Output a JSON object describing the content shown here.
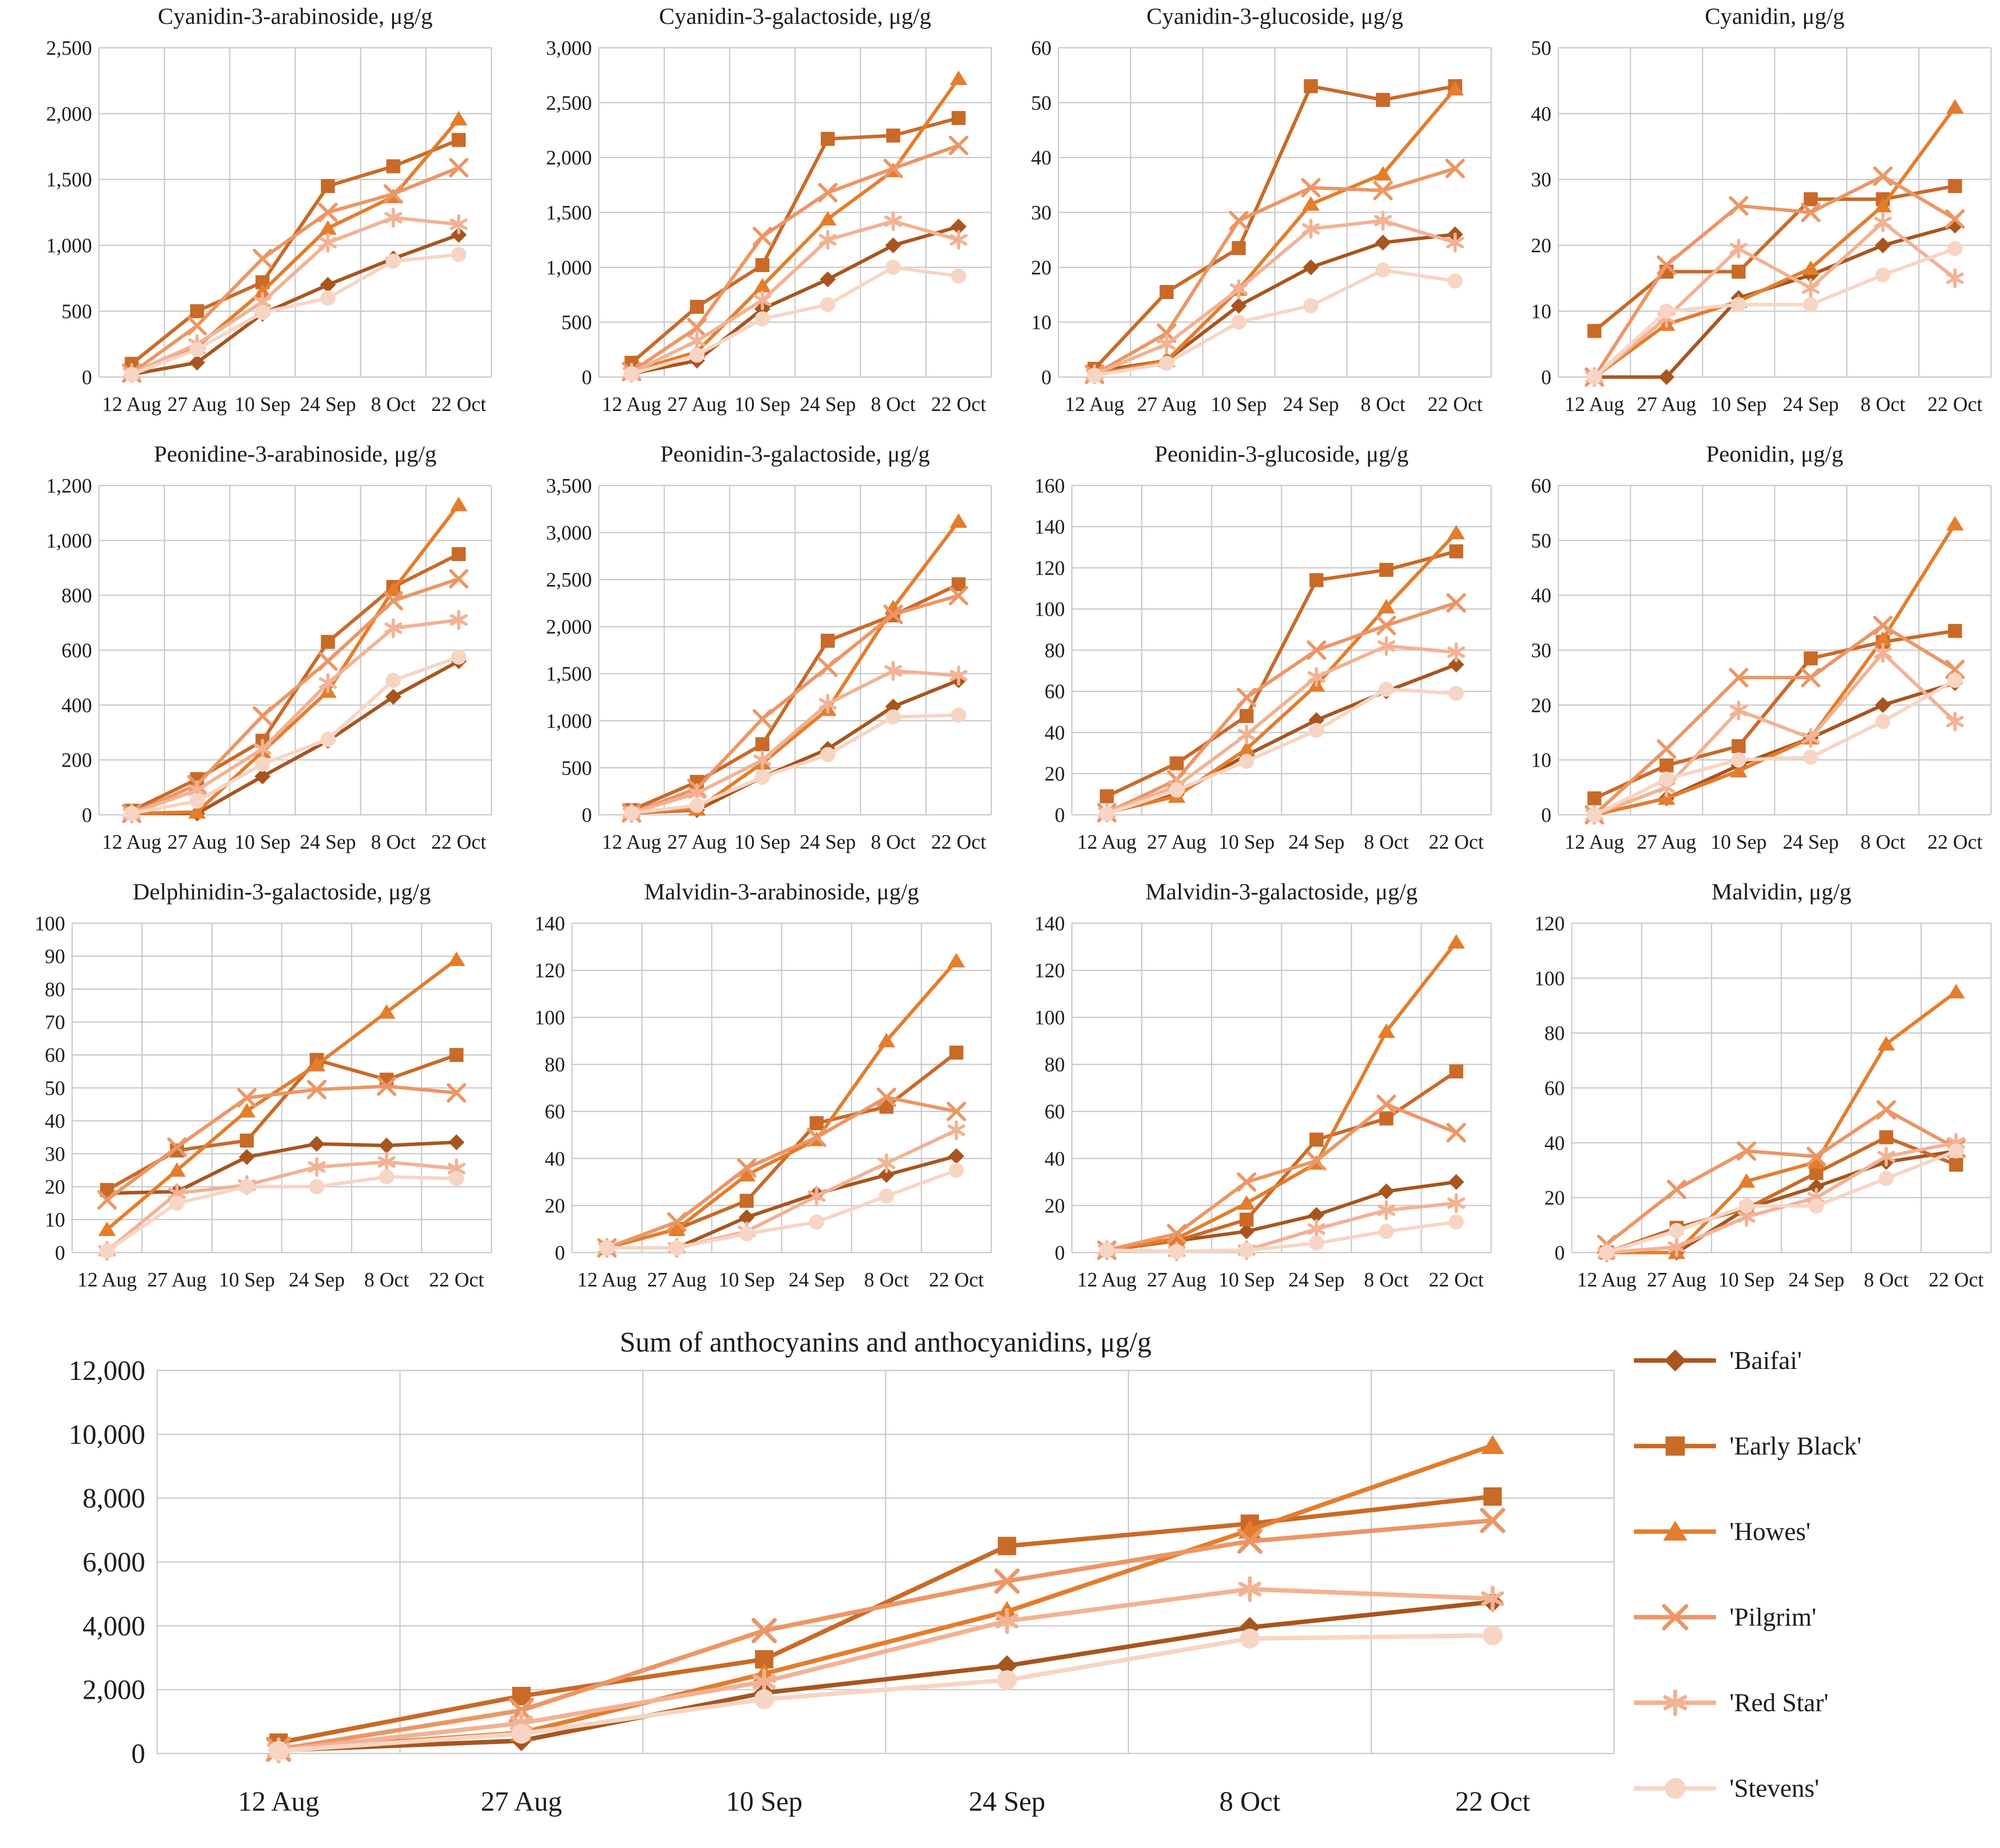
{
  "figure_background": "#ffffff",
  "grid_color": "#c9c9c9",
  "x_categories": [
    "12 Aug",
    "27 Aug",
    "10 Sep",
    "24 Sep",
    "8 Oct",
    "22 Oct"
  ],
  "cultivars": [
    {
      "label": "'Baifai'",
      "marker": "diamond",
      "color": "#A8551E"
    },
    {
      "label": "'Early Black'",
      "marker": "square",
      "color": "#C96A28"
    },
    {
      "label": "'Howes'",
      "marker": "triangle",
      "color": "#E47D2C"
    },
    {
      "label": "'Pilgrim'",
      "marker": "x",
      "color": "#EC9665"
    },
    {
      "label": "'Red Star'",
      "marker": "asterisk",
      "color": "#F2B294"
    },
    {
      "label": "'Stevens'",
      "marker": "circle",
      "color": "#F7D5C4"
    }
  ],
  "chart_data": [
    {
      "type": "line",
      "title": "Cyanidin-3-arabinoside, μg/g",
      "ylim": [
        0,
        2500
      ],
      "ystep": 500,
      "grid": true,
      "categories": [
        "12 Aug",
        "27 Aug",
        "10 Sep",
        "24 Sep",
        "8 Oct",
        "22 Oct"
      ],
      "series": [
        {
          "name": "'Baifai'",
          "values": [
            20,
            110,
            480,
            700,
            900,
            1080
          ]
        },
        {
          "name": "'Early Black'",
          "values": [
            100,
            500,
            720,
            1450,
            1600,
            1800
          ]
        },
        {
          "name": "'Howes'",
          "values": [
            30,
            230,
            650,
            1130,
            1370,
            1960
          ]
        },
        {
          "name": "'Pilgrim'",
          "values": [
            30,
            390,
            900,
            1250,
            1390,
            1590
          ]
        },
        {
          "name": "'Red Star'",
          "values": [
            30,
            250,
            570,
            1020,
            1210,
            1160
          ]
        },
        {
          "name": "'Stevens'",
          "values": [
            20,
            210,
            490,
            600,
            880,
            930
          ]
        }
      ]
    },
    {
      "type": "line",
      "title": "Cyanidin-3-galactoside, μg/g",
      "ylim": [
        0,
        3000
      ],
      "ystep": 500,
      "grid": true,
      "categories": [
        "12 Aug",
        "27 Aug",
        "10 Sep",
        "24 Sep",
        "8 Oct",
        "22 Oct"
      ],
      "series": [
        {
          "name": "'Baifai'",
          "values": [
            30,
            150,
            620,
            890,
            1200,
            1370
          ]
        },
        {
          "name": "'Early Black'",
          "values": [
            130,
            640,
            1020,
            2170,
            2200,
            2360
          ]
        },
        {
          "name": "'Howes'",
          "values": [
            50,
            230,
            830,
            1440,
            1880,
            2720
          ]
        },
        {
          "name": "'Pilgrim'",
          "values": [
            50,
            450,
            1280,
            1680,
            1900,
            2110
          ]
        },
        {
          "name": "'Red Star'",
          "values": [
            40,
            330,
            700,
            1250,
            1420,
            1250
          ]
        },
        {
          "name": "'Stevens'",
          "values": [
            30,
            200,
            530,
            660,
            1000,
            920
          ]
        }
      ]
    },
    {
      "type": "line",
      "title": "Cyanidin-3-glucoside, μg/g",
      "ylim": [
        0,
        60
      ],
      "ystep": 10,
      "grid": true,
      "categories": [
        "12 Aug",
        "27 Aug",
        "10 Sep",
        "24 Sep",
        "8 Oct",
        "22 Oct"
      ],
      "series": [
        {
          "name": "'Baifai'",
          "values": [
            1,
            3,
            13,
            20,
            24.5,
            26
          ]
        },
        {
          "name": "'Early Black'",
          "values": [
            1.5,
            15.5,
            23.5,
            53,
            50.5,
            53
          ]
        },
        {
          "name": "'Howes'",
          "values": [
            0.5,
            3,
            16,
            31.5,
            37,
            52.5
          ]
        },
        {
          "name": "'Pilgrim'",
          "values": [
            0.5,
            8,
            28.5,
            34.5,
            34,
            38
          ]
        },
        {
          "name": "'Red Star'",
          "values": [
            0.5,
            6,
            16,
            27,
            28.5,
            24.5
          ]
        },
        {
          "name": "'Stevens'",
          "values": [
            0.3,
            2.5,
            10,
            13,
            19.5,
            17.5
          ]
        }
      ]
    },
    {
      "type": "line",
      "title": "Cyanidin, μg/g",
      "ylim": [
        0,
        50
      ],
      "ystep": 10,
      "grid": true,
      "categories": [
        "12 Aug",
        "27 Aug",
        "10 Sep",
        "24 Sep",
        "8 Oct",
        "22 Oct"
      ],
      "series": [
        {
          "name": "'Baifai'",
          "values": [
            0,
            0,
            12,
            15.5,
            20,
            23
          ]
        },
        {
          "name": "'Early Black'",
          "values": [
            7,
            16,
            16,
            27,
            27,
            29
          ]
        },
        {
          "name": "'Howes'",
          "values": [
            0,
            8,
            11.5,
            16.5,
            26,
            41
          ]
        },
        {
          "name": "'Pilgrim'",
          "values": [
            0,
            17,
            26,
            25,
            30.5,
            24
          ]
        },
        {
          "name": "'Red Star'",
          "values": [
            0,
            9,
            19.5,
            13.5,
            23.5,
            15
          ]
        },
        {
          "name": "'Stevens'",
          "values": [
            0,
            10,
            11,
            11,
            15.5,
            19.5
          ]
        }
      ]
    },
    {
      "type": "line",
      "title": "Peonidine-3-arabinoside, μg/g",
      "ylim": [
        0,
        1200
      ],
      "ystep": 200,
      "grid": true,
      "categories": [
        "12 Aug",
        "27 Aug",
        "10 Sep",
        "24 Sep",
        "8 Oct",
        "22 Oct"
      ],
      "series": [
        {
          "name": "'Baifai'",
          "values": [
            5,
            5,
            140,
            270,
            430,
            560
          ]
        },
        {
          "name": "'Early Black'",
          "values": [
            15,
            130,
            270,
            630,
            830,
            950
          ]
        },
        {
          "name": "'Howes'",
          "values": [
            5,
            10,
            230,
            450,
            820,
            1130
          ]
        },
        {
          "name": "'Pilgrim'",
          "values": [
            5,
            110,
            360,
            560,
            780,
            860
          ]
        },
        {
          "name": "'Red Star'",
          "values": [
            5,
            90,
            240,
            480,
            680,
            710
          ]
        },
        {
          "name": "'Stevens'",
          "values": [
            5,
            50,
            185,
            275,
            490,
            575
          ]
        }
      ]
    },
    {
      "type": "line",
      "title": "Peonidin-3-galactoside, μg/g",
      "ylim": [
        0,
        3500
      ],
      "ystep": 500,
      "grid": true,
      "categories": [
        "12 Aug",
        "27 Aug",
        "10 Sep",
        "24 Sep",
        "8 Oct",
        "22 Oct"
      ],
      "series": [
        {
          "name": "'Baifai'",
          "values": [
            20,
            50,
            400,
            700,
            1150,
            1430
          ]
        },
        {
          "name": "'Early Black'",
          "values": [
            50,
            350,
            750,
            1850,
            2120,
            2450
          ]
        },
        {
          "name": "'Howes'",
          "values": [
            20,
            60,
            550,
            1120,
            2200,
            3120
          ]
        },
        {
          "name": "'Pilgrim'",
          "values": [
            20,
            280,
            1020,
            1570,
            2130,
            2330
          ]
        },
        {
          "name": "'Red Star'",
          "values": [
            20,
            230,
            580,
            1180,
            1530,
            1480
          ]
        },
        {
          "name": "'Stevens'",
          "values": [
            20,
            100,
            400,
            640,
            1040,
            1060
          ]
        }
      ]
    },
    {
      "type": "line",
      "title": "Peonidin-3-glucoside, μg/g",
      "ylim": [
        0,
        160
      ],
      "ystep": 20,
      "grid": true,
      "categories": [
        "12 Aug",
        "27 Aug",
        "10 Sep",
        "24 Sep",
        "8 Oct",
        "22 Oct"
      ],
      "series": [
        {
          "name": "'Baifai'",
          "values": [
            1,
            10,
            29,
            46,
            60,
            73
          ]
        },
        {
          "name": "'Early Black'",
          "values": [
            9,
            25,
            48,
            114,
            119,
            128
          ]
        },
        {
          "name": "'Howes'",
          "values": [
            1,
            9,
            32,
            63,
            101,
            137
          ]
        },
        {
          "name": "'Pilgrim'",
          "values": [
            1,
            17,
            57,
            80,
            92,
            103
          ]
        },
        {
          "name": "'Red Star'",
          "values": [
            1,
            14,
            39,
            67,
            82,
            79
          ]
        },
        {
          "name": "'Stevens'",
          "values": [
            0.5,
            12,
            26,
            41,
            61,
            59
          ]
        }
      ]
    },
    {
      "type": "line",
      "title": "Peonidin, μg/g",
      "ylim": [
        0,
        60
      ],
      "ystep": 10,
      "grid": true,
      "categories": [
        "12 Aug",
        "27 Aug",
        "10 Sep",
        "24 Sep",
        "8 Oct",
        "22 Oct"
      ],
      "series": [
        {
          "name": "'Baifai'",
          "values": [
            0,
            3,
            9,
            14,
            20,
            24
          ]
        },
        {
          "name": "'Early Black'",
          "values": [
            3,
            9,
            12.5,
            28.5,
            31.5,
            33.5
          ]
        },
        {
          "name": "'Howes'",
          "values": [
            0,
            3,
            8,
            14,
            32,
            53
          ]
        },
        {
          "name": "'Pilgrim'",
          "values": [
            0,
            12,
            25,
            25,
            34.5,
            26.5
          ]
        },
        {
          "name": "'Red Star'",
          "values": [
            0,
            5,
            19,
            14,
            29.5,
            17
          ]
        },
        {
          "name": "'Stevens'",
          "values": [
            0,
            6.5,
            10,
            10.5,
            17,
            24.5
          ]
        }
      ]
    },
    {
      "type": "line",
      "title": "Delphinidin-3-galactoside, μg/g",
      "ylim": [
        0,
        100
      ],
      "ystep": 10,
      "grid": true,
      "categories": [
        "12 Aug",
        "27 Aug",
        "10 Sep",
        "24 Sep",
        "8 Oct",
        "22 Oct"
      ],
      "series": [
        {
          "name": "'Baifai'",
          "values": [
            18,
            18.5,
            29,
            33,
            32.5,
            33.5
          ]
        },
        {
          "name": "'Early Black'",
          "values": [
            19,
            31,
            34,
            58.5,
            52.5,
            60
          ]
        },
        {
          "name": "'Howes'",
          "values": [
            7,
            25,
            43,
            57,
            73,
            89
          ]
        },
        {
          "name": "'Pilgrim'",
          "values": [
            16,
            32,
            47,
            49.5,
            50.5,
            48.5
          ]
        },
        {
          "name": "'Red Star'",
          "values": [
            0.5,
            18,
            20.5,
            26,
            27.5,
            25.5
          ]
        },
        {
          "name": "'Stevens'",
          "values": [
            0.5,
            15,
            20,
            20,
            23,
            22.5
          ]
        }
      ]
    },
    {
      "type": "line",
      "title": "Malvidin-3-arabinoside, μg/g",
      "ylim": [
        0,
        140
      ],
      "ystep": 20,
      "grid": true,
      "categories": [
        "12 Aug",
        "27 Aug",
        "10 Sep",
        "24 Sep",
        "8 Oct",
        "22 Oct"
      ],
      "series": [
        {
          "name": "'Baifai'",
          "values": [
            2,
            2,
            15,
            25,
            33,
            41
          ]
        },
        {
          "name": "'Early Black'",
          "values": [
            2,
            10,
            22,
            55,
            62,
            85
          ]
        },
        {
          "name": "'Howes'",
          "values": [
            2,
            10,
            33,
            48,
            90,
            124
          ]
        },
        {
          "name": "'Pilgrim'",
          "values": [
            2,
            13,
            36,
            49,
            66,
            60
          ]
        },
        {
          "name": "'Red Star'",
          "values": [
            2,
            2,
            9,
            24,
            38,
            52
          ]
        },
        {
          "name": "'Stevens'",
          "values": [
            2,
            2,
            8,
            13,
            24,
            35
          ]
        }
      ]
    },
    {
      "type": "line",
      "title": "Malvidin-3-galactoside, μg/g",
      "ylim": [
        0,
        140
      ],
      "ystep": 20,
      "grid": true,
      "categories": [
        "12 Aug",
        "27 Aug",
        "10 Sep",
        "24 Sep",
        "8 Oct",
        "22 Oct"
      ],
      "series": [
        {
          "name": "'Baifai'",
          "values": [
            1,
            5,
            9,
            16,
            26,
            30
          ]
        },
        {
          "name": "'Early Black'",
          "values": [
            1,
            5,
            14,
            48,
            57,
            77
          ]
        },
        {
          "name": "'Howes'",
          "values": [
            1,
            6,
            21,
            38,
            94,
            132
          ]
        },
        {
          "name": "'Pilgrim'",
          "values": [
            1,
            8,
            30,
            39,
            63,
            51
          ]
        },
        {
          "name": "'Red Star'",
          "values": [
            1,
            0.5,
            1,
            10,
            18,
            21
          ]
        },
        {
          "name": "'Stevens'",
          "values": [
            1,
            0.5,
            1,
            4,
            9,
            13
          ]
        }
      ]
    },
    {
      "type": "line",
      "title": "Malvidin, μg/g",
      "ylim": [
        0,
        120
      ],
      "ystep": 20,
      "grid": true,
      "categories": [
        "12 Aug",
        "27 Aug",
        "10 Sep",
        "24 Sep",
        "8 Oct",
        "22 Oct"
      ],
      "series": [
        {
          "name": "'Baifai'",
          "values": [
            0,
            0,
            16,
            24,
            33,
            37
          ]
        },
        {
          "name": "'Early Black'",
          "values": [
            0,
            9,
            16,
            29,
            42,
            32
          ]
        },
        {
          "name": "'Howes'",
          "values": [
            0,
            0,
            26,
            33,
            76,
            95
          ]
        },
        {
          "name": "'Pilgrim'",
          "values": [
            3,
            23,
            37,
            35,
            52,
            38
          ]
        },
        {
          "name": "'Red Star'",
          "values": [
            0,
            2,
            13,
            20,
            35,
            40
          ]
        },
        {
          "name": "'Stevens'",
          "values": [
            0,
            8,
            17,
            17,
            27,
            37
          ]
        }
      ]
    },
    {
      "type": "line",
      "title": "Sum of anthocyanins and anthocyanidins, μg/g",
      "ylim": [
        0,
        12000
      ],
      "ystep": 2000,
      "grid": true,
      "legend_position": "right",
      "categories": [
        "12 Aug",
        "27 Aug",
        "10 Sep",
        "24 Sep",
        "8 Oct",
        "22 Oct"
      ],
      "series": [
        {
          "name": "'Baifai'",
          "values": [
            100,
            400,
            1900,
            2750,
            3950,
            4750
          ]
        },
        {
          "name": "'Early Black'",
          "values": [
            340,
            1800,
            2950,
            6500,
            7200,
            8050
          ]
        },
        {
          "name": "'Howes'",
          "values": [
            115,
            650,
            2500,
            4450,
            7000,
            9650
          ]
        },
        {
          "name": "'Pilgrim'",
          "values": [
            130,
            1350,
            3850,
            5400,
            6650,
            7300
          ]
        },
        {
          "name": "'Red Star'",
          "values": [
            100,
            950,
            2250,
            4150,
            5150,
            4850
          ]
        },
        {
          "name": "'Stevens'",
          "values": [
            80,
            620,
            1700,
            2300,
            3600,
            3700
          ]
        }
      ]
    }
  ]
}
